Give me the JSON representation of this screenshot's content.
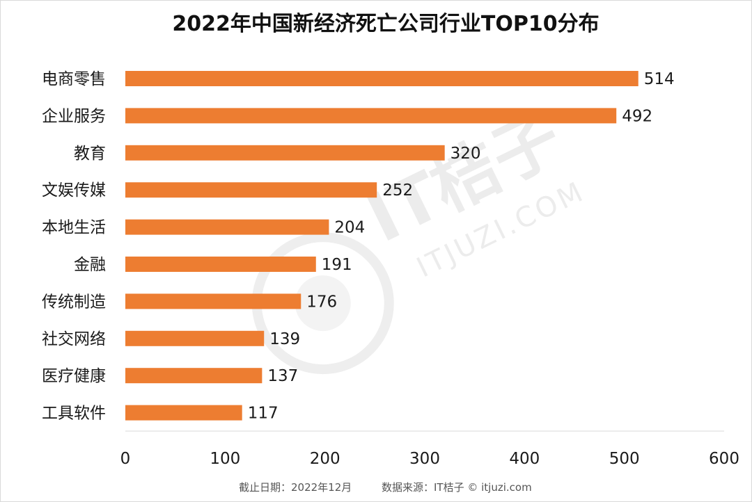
{
  "watermark": {
    "brand_cn": "IT桔子",
    "brand_url": "ITJUZI.COM"
  },
  "footer": {
    "date_note": "截止日期：2022年12月",
    "source_note": "数据来源：IT桔子 © itjuzi.com"
  },
  "chart_data": {
    "type": "bar",
    "orientation": "horizontal",
    "title": "2022年中国新经济死亡公司行业TOP10分布",
    "categories": [
      "电商零售",
      "企业服务",
      "教育",
      "文娱传媒",
      "本地生活",
      "金融",
      "传统制造",
      "社交网络",
      "医疗健康",
      "工具软件"
    ],
    "values": [
      514,
      492,
      320,
      252,
      204,
      191,
      176,
      139,
      137,
      117
    ],
    "xlim": [
      0,
      600
    ],
    "xticks": [
      0,
      100,
      200,
      300,
      400,
      500,
      600
    ],
    "grid": false,
    "legend": "none",
    "bar_color": "#ED7D31"
  }
}
